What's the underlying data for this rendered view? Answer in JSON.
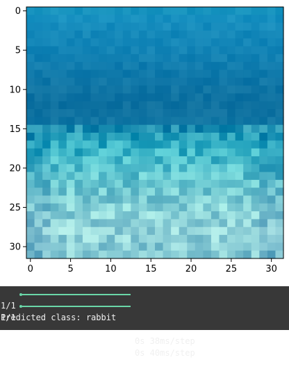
{
  "chart_data": {
    "type": "heatmap",
    "title": "",
    "xlabel": "",
    "ylabel": "",
    "xlim": [
      -0.5,
      31.5
    ],
    "ylim": [
      31.5,
      -0.5
    ],
    "grid": false,
    "x_ticks": [
      0,
      5,
      10,
      15,
      20,
      25,
      30
    ],
    "y_ticks": [
      0,
      5,
      10,
      15,
      20,
      25,
      30
    ],
    "x_tick_labels": [
      "0",
      "5",
      "10",
      "15",
      "20",
      "25",
      "30"
    ],
    "y_tick_labels": [
      "0",
      "5",
      "10",
      "15",
      "20",
      "25",
      "30"
    ],
    "grid_size": [
      32,
      32
    ],
    "row_colors": [
      "#1592be",
      "#1790c0",
      "#168cbd",
      "#1488b9",
      "#1386b8",
      "#1283b5",
      "#1180b2",
      "#107cae",
      "#0f79aa",
      "#0f76a7",
      "#0f74a4",
      "#0e72a2",
      "#0e71a0",
      "#0f72a1",
      "#1075a3",
      "#1f91b3",
      "#27a0bb",
      "#2eabc2",
      "#3ab3c6",
      "#47b9c9",
      "#54bfcd",
      "#60c4cf",
      "#6bc8d1",
      "#76cbd3",
      "#7fced5",
      "#86d1d7",
      "#8bd2d8",
      "#90d3d9",
      "#92d3d9",
      "#8fd1d8",
      "#8acdd6",
      "#84c9d3"
    ]
  },
  "console": {
    "lines": [
      {
        "step": "1/1",
        "time": "0s 38ms/step"
      },
      {
        "step": "1/1",
        "time": "0s 40ms/step"
      }
    ],
    "prediction": "Predicted class: rabbit",
    "progress": 1.0
  }
}
